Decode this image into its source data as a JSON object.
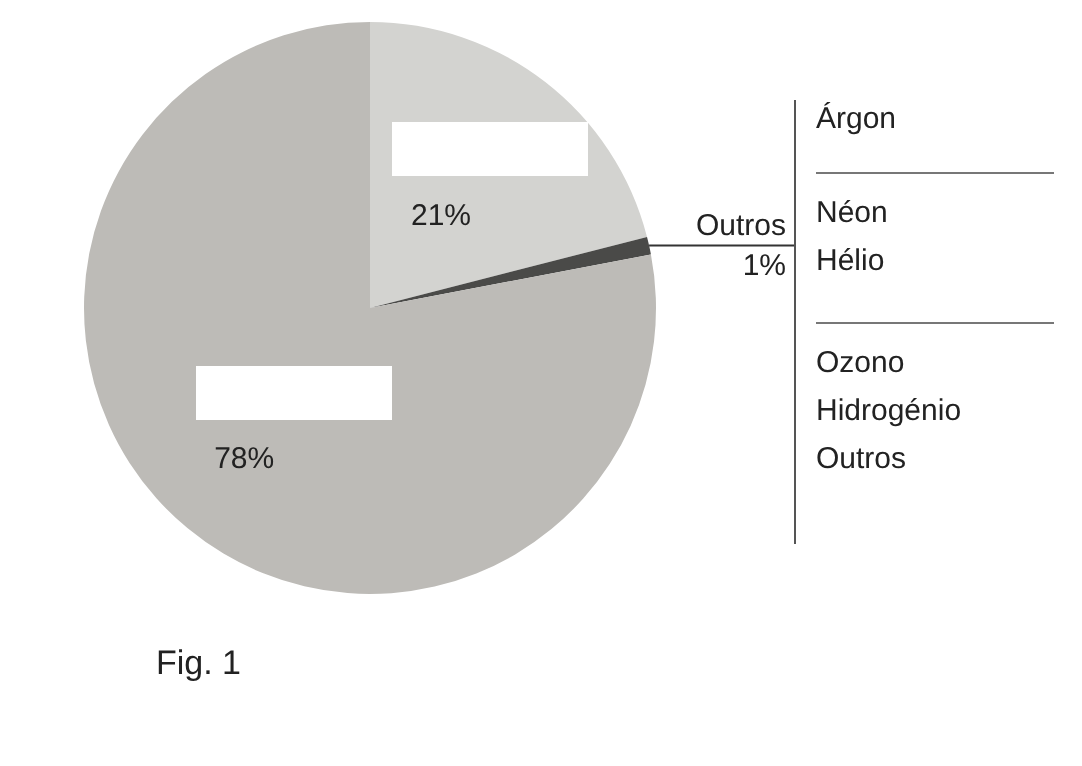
{
  "chart_data": {
    "type": "pie",
    "categories": [
      null,
      "Outros",
      null
    ],
    "values": [
      21,
      1,
      78
    ],
    "colors": [
      "#d3d3d0",
      "#4a4a48",
      "#bdbbb7"
    ],
    "value_labels": [
      "21%",
      "1%",
      "78%"
    ],
    "legend": false,
    "annotations": [
      "Árgon",
      "Néon\nHélio",
      "Ozono\nHidrogénio\nOutros",
      "Fig. 1"
    ]
  }
}
